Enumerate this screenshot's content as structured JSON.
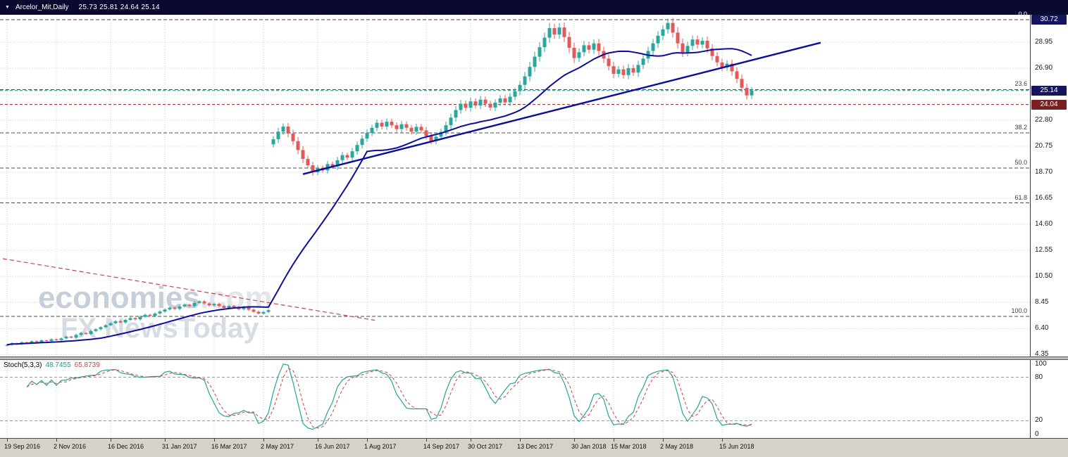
{
  "title_bar": {
    "dropdown_icon": "▼",
    "symbol": "Arcelor_Mit,Daily",
    "ohlc": "25.73 25.81 24.64 25.14"
  },
  "watermark": {
    "brand": "economies",
    "brand_suffix": ".com",
    "tagline": "FX NewsToday"
  },
  "indicator": {
    "name": "Stoch(5,3,3)",
    "k_value": "48.7455",
    "d_value": "65.8739"
  },
  "chart_data": [
    {
      "type": "candlestick",
      "name": "price-pane",
      "symbol": "Arcelor_Mit",
      "timeframe": "Daily",
      "ylim": [
        4.2,
        31.1
      ],
      "y_grid_prices": [
        28.95,
        26.9,
        24.85,
        22.8,
        20.75,
        18.7,
        16.65,
        14.6,
        12.55,
        10.5,
        8.45,
        6.4,
        4.35
      ],
      "y_tick_labels": [
        "28.95",
        "26.90",
        "22.80",
        "20.75",
        "18.70",
        "16.65",
        "14.60",
        "12.55",
        "10.50",
        "8.45",
        "6.40",
        "4.35"
      ],
      "price_badges": [
        {
          "label": "30.72",
          "price": 30.72,
          "bg": "#15155e"
        },
        {
          "label": "25.14",
          "price": 25.14,
          "bg": "#15155e"
        },
        {
          "label": "24.04",
          "price": 24.04,
          "bg": "#7a2020"
        }
      ],
      "x_ticks": [
        {
          "label": "19 Sep 2016",
          "candle": 0
        },
        {
          "label": "2 Nov 2016",
          "candle": 10
        },
        {
          "label": "16 Dec 2016",
          "candle": 21
        },
        {
          "label": "31 Jan 2017",
          "candle": 32
        },
        {
          "label": "16 Mar 2017",
          "candle": 42
        },
        {
          "label": "2 May 2017",
          "candle": 52
        },
        {
          "label": "16 Jun 2017",
          "candle": 63
        },
        {
          "label": "1 Aug 2017",
          "candle": 73
        },
        {
          "label": "14 Sep 2017",
          "candle": 85
        },
        {
          "label": "30 Oct 2017",
          "candle": 94
        },
        {
          "label": "13 Dec 2017",
          "candle": 104
        },
        {
          "label": "30 Jan 2018",
          "candle": 115
        },
        {
          "label": "15 Mar 2018",
          "candle": 123
        },
        {
          "label": "2 May 2018",
          "candle": 133
        },
        {
          "label": "15 Jun 2018",
          "candle": 145
        }
      ],
      "candles": {
        "first_open": 5.05,
        "gap_index": 54,
        "gap_open": 20.9,
        "wick_pct": 0.007,
        "closes": [
          5.12,
          5.24,
          5.18,
          5.32,
          5.26,
          5.4,
          5.33,
          5.47,
          5.41,
          5.55,
          5.48,
          5.62,
          5.76,
          5.68,
          5.9,
          6.05,
          5.97,
          6.2,
          6.34,
          6.5,
          6.66,
          6.82,
          6.98,
          6.88,
          7.08,
          7.22,
          7.12,
          7.32,
          7.48,
          7.4,
          7.58,
          7.74,
          7.9,
          8.04,
          7.94,
          8.14,
          8.28,
          8.18,
          8.42,
          8.54,
          8.38,
          8.22,
          8.34,
          8.18,
          8.02,
          8.18,
          8.08,
          7.92,
          8.08,
          7.88,
          7.72,
          7.58,
          7.7,
          7.84,
          21.3,
          21.9,
          22.3,
          21.75,
          21.15,
          20.45,
          19.75,
          19.25,
          18.7,
          19.05,
          18.85,
          19.35,
          19.15,
          19.65,
          20.05,
          19.85,
          20.35,
          20.85,
          21.35,
          21.8,
          22.2,
          22.6,
          22.3,
          22.68,
          22.4,
          22.1,
          22.48,
          22.2,
          21.9,
          22.28,
          22.0,
          21.55,
          21.15,
          21.5,
          21.88,
          22.4,
          23.0,
          23.6,
          24.1,
          23.78,
          24.28,
          23.96,
          24.42,
          24.1,
          23.8,
          24.18,
          24.52,
          24.2,
          24.65,
          25.08,
          25.58,
          26.25,
          27.0,
          27.8,
          28.55,
          29.3,
          30.05,
          29.55,
          30.1,
          29.35,
          28.5,
          27.7,
          28.15,
          28.7,
          28.35,
          28.85,
          28.25,
          27.65,
          27.05,
          26.45,
          26.8,
          26.35,
          26.9,
          26.55,
          27.15,
          27.65,
          28.25,
          28.85,
          29.45,
          29.95,
          30.45,
          29.7,
          28.85,
          28.15,
          28.65,
          29.15,
          28.75,
          29.05,
          28.45,
          27.85,
          27.35,
          26.95,
          27.25,
          26.65,
          26.05,
          25.35,
          24.75,
          25.14
        ]
      },
      "colors": {
        "bull": "#2aa79d",
        "bear": "#e05a5a",
        "ma": "#0d0d9c"
      },
      "moving_average_period": 20,
      "trendlines": [
        {
          "name": "ascending-support",
          "from_candle": 60,
          "from_price": 18.55,
          "to_candle": 165,
          "to_price": 28.9,
          "style": "solid",
          "color": "#0d0d9c",
          "width": 2.4
        },
        {
          "name": "descending-resistance",
          "from_x": 4,
          "from_price": 11.9,
          "to_x": 532,
          "to_price": 7.05,
          "style": "dashed",
          "color": "#cc4444",
          "width": 1.2
        }
      ],
      "fib_levels": [
        {
          "pct": "0.0",
          "price": 30.72
        },
        {
          "pct": "23.6",
          "price": 25.21
        },
        {
          "pct": "38.2",
          "price": 21.8
        },
        {
          "pct": "50.0",
          "price": 19.04
        },
        {
          "pct": "61.8",
          "price": 16.29
        },
        {
          "pct": "100.0",
          "price": 7.36
        }
      ],
      "price_lines": [
        {
          "price": 25.14,
          "color": "#0e8f8f"
        },
        {
          "price": 24.04,
          "color": "#8b2525"
        }
      ]
    },
    {
      "type": "line",
      "name": "stochastic-pane",
      "label": "Stoch(5,3,3) 48.7455 65.8739",
      "k_period": 5,
      "slowing": 3,
      "d_period": 3,
      "range": [
        0,
        100
      ],
      "levels": [
        80,
        20
      ],
      "y_tick_labels": [
        "100",
        "80",
        "20",
        "0"
      ],
      "colors": {
        "k": "#27a39b",
        "d": "#cc4444"
      },
      "last_values": {
        "k": 48.7455,
        "d": 65.8739
      }
    }
  ]
}
